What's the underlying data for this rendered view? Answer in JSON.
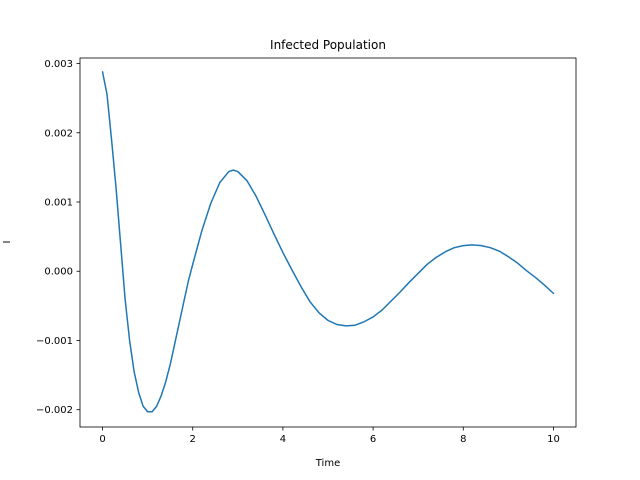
{
  "chart_data": {
    "type": "line",
    "title": "Infected Population",
    "xlabel": "Time",
    "ylabel": "I",
    "xlim": [
      -0.5,
      10.5
    ],
    "ylim": [
      -0.00225,
      0.00308
    ],
    "x_ticks": [
      0,
      2,
      4,
      6,
      8,
      10
    ],
    "x_tick_labels": [
      "0",
      "2",
      "4",
      "6",
      "8",
      "10"
    ],
    "y_ticks": [
      -0.002,
      -0.001,
      0.0,
      0.001,
      0.002,
      0.003
    ],
    "y_tick_labels": [
      "−0.002",
      "−0.001",
      "0.000",
      "0.001",
      "0.002",
      "0.003"
    ],
    "grid": false,
    "series": [
      {
        "color": "#1f77b4",
        "x": [
          0,
          0.1,
          0.2,
          0.3,
          0.4,
          0.5,
          0.6,
          0.7,
          0.8,
          0.9,
          1.0,
          1.1,
          1.2,
          1.3,
          1.4,
          1.5,
          1.6,
          1.7,
          1.8,
          1.9,
          2.0,
          2.2,
          2.4,
          2.6,
          2.8,
          2.9,
          3.0,
          3.2,
          3.4,
          3.6,
          3.8,
          4.0,
          4.2,
          4.4,
          4.6,
          4.8,
          5.0,
          5.2,
          5.4,
          5.6,
          5.8,
          6.0,
          6.2,
          6.4,
          6.6,
          6.8,
          7.0,
          7.2,
          7.4,
          7.6,
          7.8,
          8.0,
          8.2,
          8.4,
          8.6,
          8.8,
          9.0,
          9.2,
          9.4,
          9.6,
          9.8,
          10.0
        ],
        "values": [
          0.00288,
          0.00255,
          0.0019,
          0.0012,
          0.0004,
          -0.0004,
          -0.001,
          -0.00145,
          -0.00175,
          -0.00195,
          -0.00203,
          -0.00203,
          -0.00195,
          -0.0018,
          -0.0016,
          -0.00135,
          -0.00105,
          -0.00075,
          -0.00045,
          -0.00015,
          0.0001,
          0.00058,
          0.00098,
          0.00128,
          0.00144,
          0.00146,
          0.00144,
          0.00131,
          0.00109,
          0.00082,
          0.00054,
          0.00027,
          2e-05,
          -0.00022,
          -0.00044,
          -0.0006,
          -0.00071,
          -0.00077,
          -0.00079,
          -0.00078,
          -0.00073,
          -0.00066,
          -0.00056,
          -0.00043,
          -0.0003,
          -0.00016,
          -3e-05,
          0.0001,
          0.0002,
          0.00028,
          0.00034,
          0.00037,
          0.00038,
          0.00037,
          0.00034,
          0.00029,
          0.00021,
          0.00012,
          1e-05,
          -9e-05,
          -0.0002,
          -0.00032
        ]
      }
    ]
  }
}
